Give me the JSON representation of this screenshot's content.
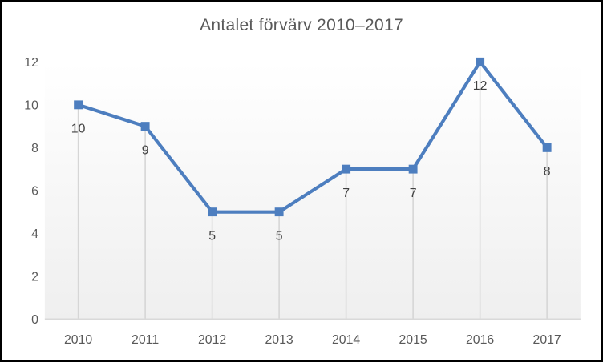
{
  "chart_data": {
    "type": "line",
    "title": "Antalet förvärv 2010–2017",
    "categories": [
      "2010",
      "2011",
      "2012",
      "2013",
      "2014",
      "2015",
      "2016",
      "2017"
    ],
    "values": [
      10,
      9,
      5,
      5,
      7,
      7,
      12,
      8
    ],
    "xlabel": "",
    "ylabel": "",
    "ylim": [
      0,
      12
    ],
    "yticks": [
      0,
      2,
      4,
      6,
      8,
      10,
      12
    ],
    "legend": "none",
    "grid": "vertical drop lines from each point to x-axis",
    "marker": "square",
    "data_labels_position": "below points",
    "colors": {
      "series": "#4d7ebf",
      "drop_line": "#d6d6d6",
      "axis_line": "#d9d9d9",
      "axis_text": "#595959",
      "title_text": "#595959",
      "data_label_text": "#404040",
      "plot_fill_top": "#ffffff",
      "plot_fill_bottom": "#efefef",
      "frame_border": "#000000"
    }
  }
}
